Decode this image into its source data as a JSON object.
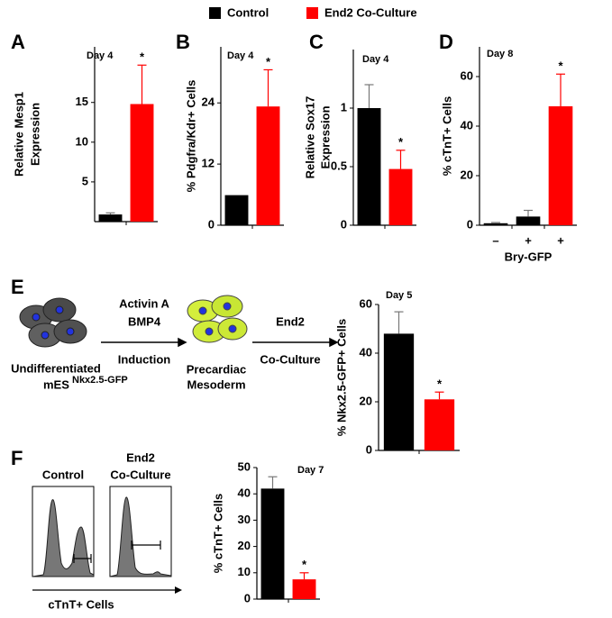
{
  "panels": [
    "A",
    "B",
    "C",
    "D",
    "E",
    "F"
  ],
  "diagram": {
    "start_lines": [
      "Undifferentiated",
      "mES"
    ],
    "start_superscript": "Nkx2.5-GFP",
    "step1_above": [
      "Activin A",
      "BMP4"
    ],
    "step1_below": "Induction",
    "middle_lines": [
      "Precardiac",
      "Mesoderm"
    ],
    "step2_above": "End2",
    "step2_below": "Co-Culture"
  },
  "flow": {
    "left_title": "Control",
    "right_title": [
      "End2",
      "Co-Culture"
    ],
    "xlabel": "cTnT+ Cells"
  },
  "chart_data": [
    {
      "type": "bar",
      "annotation": "Day 4",
      "ylabel": [
        "Relative Mesp1",
        "Expression"
      ],
      "categories": [
        null,
        null
      ],
      "ylim": [
        0,
        22
      ],
      "yticks": [
        5,
        10,
        15
      ],
      "series": [
        {
          "name": "Control",
          "color": "#000000",
          "values": [
            0.9,
            null
          ],
          "errors": [
            0.2,
            null
          ]
        },
        {
          "name": "End2 Co-Culture",
          "color": "#ff0000",
          "values": [
            null,
            14.8
          ],
          "errors": [
            null,
            4.9
          ],
          "significance": "*"
        }
      ]
    },
    {
      "type": "bar",
      "annotation": "Day 4",
      "ylabel": [
        "% Pdgfra/Kdr+ Cells"
      ],
      "categories": [
        null,
        null
      ],
      "ylim": [
        0,
        35
      ],
      "yticks": [
        0,
        12,
        24
      ],
      "series": [
        {
          "name": "Control",
          "color": "#000000",
          "values": [
            5.9,
            null
          ]
        },
        {
          "name": "End2 Co-Culture",
          "color": "#ff0000",
          "values": [
            null,
            23.3
          ],
          "errors": [
            null,
            7.2
          ],
          "significance": "*"
        }
      ]
    },
    {
      "type": "bar",
      "annotation": "Day 4",
      "ylabel": [
        "Relative Sox17",
        "Expression"
      ],
      "categories": [
        null,
        null
      ],
      "ylim": [
        0,
        1.5
      ],
      "yticks": [
        0,
        0.5,
        1
      ],
      "series": [
        {
          "name": "Control",
          "color": "#000000",
          "values": [
            1.0,
            null
          ],
          "errors": [
            0.2,
            null
          ]
        },
        {
          "name": "End2 Co-Culture",
          "color": "#ff0000",
          "values": [
            null,
            0.48
          ],
          "errors": [
            null,
            0.16
          ],
          "significance": "*"
        }
      ]
    },
    {
      "type": "bar",
      "annotation": "Day 8",
      "ylabel": [
        "% cTnT+ Cells"
      ],
      "xlabel": "Bry-GFP",
      "categories": [
        "–",
        "+",
        "+"
      ],
      "ylim": [
        0,
        72
      ],
      "yticks": [
        0,
        20,
        40,
        60
      ],
      "series": [
        {
          "name": "Control",
          "color": "#000000",
          "values": [
            0.8,
            3.5,
            null
          ],
          "errors": [
            0.3,
            2.5,
            null
          ]
        },
        {
          "name": "End2 Co-Culture",
          "color": "#ff0000",
          "values": [
            null,
            null,
            48
          ],
          "errors": [
            null,
            null,
            13
          ],
          "significance": "*"
        }
      ]
    },
    {
      "type": "bar",
      "annotation": "Day 5",
      "ylabel": [
        "% Nkx2.5-GFP+ Cells"
      ],
      "categories": [
        null,
        null
      ],
      "ylim": [
        0,
        60
      ],
      "yticks": [
        0,
        20,
        40,
        60
      ],
      "series": [
        {
          "name": "Control",
          "color": "#000000",
          "values": [
            48,
            null
          ],
          "errors": [
            9,
            null
          ]
        },
        {
          "name": "End2 Co-Culture",
          "color": "#ff0000",
          "values": [
            null,
            21
          ],
          "errors": [
            null,
            3
          ],
          "significance": "*"
        }
      ]
    },
    {
      "type": "bar",
      "annotation": "Day 7",
      "ylabel": [
        "% cTnT+ Cells"
      ],
      "categories": [
        null,
        null
      ],
      "ylim": [
        0,
        50
      ],
      "yticks": [
        0,
        10,
        20,
        30,
        40,
        50
      ],
      "series": [
        {
          "name": "Control",
          "color": "#000000",
          "values": [
            42,
            null
          ],
          "errors": [
            4.5,
            null
          ]
        },
        {
          "name": "End2 Co-Culture",
          "color": "#ff0000",
          "values": [
            null,
            7.5
          ],
          "errors": [
            null,
            2.5
          ],
          "significance": "*"
        }
      ]
    }
  ]
}
